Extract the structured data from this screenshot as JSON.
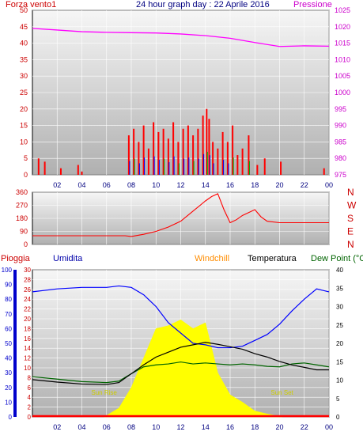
{
  "header": {
    "title": "24 hour graph day : 22 Aprile 2016",
    "left_label": "Forza vento1",
    "right_label": "Pressione"
  },
  "panel3_header": {
    "pioggia": "Pioggia",
    "umidita": "Umidita",
    "windchill": "Windchill",
    "temperatura": "Temperatura",
    "dewpoint": "Dew Point (°C"
  },
  "colors": {
    "wind": "#ff0000",
    "wind_series_2": "#0000ff",
    "wind_series_3": "#00aa00",
    "pressure": "#ff00ff",
    "winddir": "#ff0000",
    "humidity": "#0000ff",
    "temperature": "#000000",
    "dewpoint": "#006400",
    "windchill": "#ff8c00",
    "solar": "#ffff00",
    "rain": "#ff0000",
    "panel_bg_top": "#f6f6f6",
    "panel_bg_bottom": "#b0b0b0"
  },
  "chart_data": [
    {
      "type": "bar",
      "title": "24 hour graph day : 22 Aprile 2016",
      "x_ticks": [
        "02",
        "04",
        "06",
        "08",
        "10",
        "12",
        "14",
        "16",
        "18",
        "20",
        "22",
        "00"
      ],
      "left_axis": {
        "label": "Forza vento1",
        "ylim": [
          0,
          50
        ],
        "ticks": [
          0,
          5,
          10,
          15,
          20,
          25,
          30,
          35,
          40,
          45,
          50
        ]
      },
      "right_axis": {
        "label": "Pressione",
        "ylim": [
          975,
          1025
        ],
        "ticks": [
          975,
          980,
          985,
          990,
          995,
          1000,
          1005,
          1010,
          1015,
          1020,
          1025
        ]
      },
      "grid": true,
      "pressure_line": {
        "x_hours": [
          0,
          2,
          4,
          6,
          8,
          10,
          12,
          14,
          16,
          18,
          20,
          22,
          24
        ],
        "values": [
          1019.5,
          1019,
          1018.5,
          1018.3,
          1018.2,
          1018.1,
          1017.8,
          1017.3,
          1016.5,
          1015.2,
          1014.0,
          1014.2,
          1014.1
        ]
      },
      "wind_bursts": [
        {
          "x_hour": 0.5,
          "value": 5
        },
        {
          "x_hour": 1.0,
          "value": 4
        },
        {
          "x_hour": 2.3,
          "value": 2
        },
        {
          "x_hour": 3.7,
          "value": 3
        },
        {
          "x_hour": 4.0,
          "value": 1
        },
        {
          "x_hour": 7.8,
          "value": 12
        },
        {
          "x_hour": 8.2,
          "value": 14
        },
        {
          "x_hour": 8.6,
          "value": 10
        },
        {
          "x_hour": 9.0,
          "value": 15
        },
        {
          "x_hour": 9.4,
          "value": 8
        },
        {
          "x_hour": 9.8,
          "value": 16
        },
        {
          "x_hour": 10.2,
          "value": 13
        },
        {
          "x_hour": 10.6,
          "value": 14
        },
        {
          "x_hour": 11.0,
          "value": 11
        },
        {
          "x_hour": 11.4,
          "value": 16
        },
        {
          "x_hour": 11.8,
          "value": 10
        },
        {
          "x_hour": 12.2,
          "value": 14
        },
        {
          "x_hour": 12.6,
          "value": 15
        },
        {
          "x_hour": 13.0,
          "value": 12
        },
        {
          "x_hour": 13.4,
          "value": 14
        },
        {
          "x_hour": 13.8,
          "value": 18
        },
        {
          "x_hour": 14.1,
          "value": 20
        },
        {
          "x_hour": 14.3,
          "value": 17
        },
        {
          "x_hour": 14.6,
          "value": 10
        },
        {
          "x_hour": 15.0,
          "value": 8
        },
        {
          "x_hour": 15.4,
          "value": 13
        },
        {
          "x_hour": 15.8,
          "value": 10
        },
        {
          "x_hour": 16.2,
          "value": 15
        },
        {
          "x_hour": 16.6,
          "value": 6
        },
        {
          "x_hour": 17.0,
          "value": 8
        },
        {
          "x_hour": 17.5,
          "value": 12
        },
        {
          "x_hour": 18.2,
          "value": 3
        },
        {
          "x_hour": 18.8,
          "value": 5
        },
        {
          "x_hour": 20.1,
          "value": 4
        },
        {
          "x_hour": 23.6,
          "value": 2
        }
      ]
    },
    {
      "type": "line",
      "left_axis": {
        "ylim": [
          0,
          360
        ],
        "ticks": [
          0,
          90,
          180,
          270,
          360
        ]
      },
      "right_labels": [
        "N",
        "W",
        "S",
        "E",
        "N"
      ],
      "series": [
        {
          "x_hours": [
            0,
            2,
            4,
            6,
            7.5,
            8,
            9,
            10,
            11,
            12,
            13,
            14,
            14.5,
            15,
            15.5,
            16,
            16.5,
            17,
            18,
            18.5,
            19,
            20,
            21,
            22,
            23,
            24
          ],
          "values": [
            60,
            60,
            60,
            60,
            60,
            55,
            70,
            90,
            120,
            160,
            230,
            300,
            330,
            350,
            240,
            150,
            170,
            200,
            240,
            190,
            160,
            150,
            150,
            150,
            150,
            150
          ]
        }
      ]
    },
    {
      "type": "line",
      "x_ticks": [
        "02",
        "04",
        "06",
        "08",
        "10",
        "12",
        "14",
        "16",
        "18",
        "20",
        "22",
        "00"
      ],
      "left_axis_rain": {
        "ylim": [
          0,
          100
        ],
        "ticks": [
          0,
          10,
          20,
          30,
          40,
          50,
          60,
          70,
          80,
          90,
          100
        ]
      },
      "left_axis_temp": {
        "ylim": [
          0,
          30
        ],
        "ticks": [
          0,
          2,
          4,
          6,
          8,
          10,
          12,
          14,
          16,
          18,
          20,
          22,
          24,
          26,
          28,
          30
        ]
      },
      "right_axis": {
        "ylim": [
          0,
          40
        ],
        "ticks": [
          0,
          5,
          10,
          15,
          20,
          25,
          30,
          35,
          40
        ]
      },
      "sun_labels": {
        "rise": {
          "text": "Sun Rise",
          "x_hour": 5.8
        },
        "set": {
          "text": "Sun Set",
          "x_hour": 20.2
        }
      },
      "series": [
        {
          "name": "Umidita",
          "x_hours": [
            0,
            2,
            4,
            6,
            7,
            8,
            9,
            10,
            11,
            12,
            13,
            14,
            15,
            16,
            17,
            18,
            19,
            20,
            21,
            22,
            23,
            24
          ],
          "values": [
            85,
            87,
            88,
            88,
            89,
            88,
            83,
            75,
            64,
            57,
            50,
            49,
            47,
            47,
            48,
            52,
            56,
            63,
            72,
            80,
            87,
            85
          ]
        },
        {
          "name": "Temperatura",
          "x_hours": [
            0,
            2,
            4,
            6,
            7,
            8,
            9,
            10,
            11,
            12,
            13,
            14,
            15,
            16,
            17,
            18,
            19,
            20,
            21,
            22,
            23,
            24
          ],
          "values": [
            7.6,
            7.1,
            6.7,
            6.6,
            7.0,
            8.8,
            10.6,
            12.2,
            13.2,
            14.2,
            14.7,
            15.2,
            14.8,
            14.3,
            13.8,
            12.9,
            12.2,
            11.3,
            10.6,
            10.1,
            9.6,
            9.6
          ]
        },
        {
          "name": "Dew Point",
          "x_hours": [
            0,
            2,
            4,
            6,
            7,
            8,
            9,
            10,
            11,
            12,
            13,
            14,
            15,
            16,
            17,
            18,
            19,
            20,
            21,
            22,
            23,
            24
          ],
          "values": [
            8.2,
            7.7,
            7.2,
            7.0,
            7.3,
            8.8,
            10.2,
            10.6,
            10.8,
            11.2,
            10.8,
            11.0,
            10.8,
            10.6,
            10.8,
            10.6,
            10.3,
            10.2,
            10.8,
            11.0,
            10.6,
            10.2
          ]
        },
        {
          "name": "Solar",
          "x_hours": [
            5.8,
            7,
            8,
            9,
            10,
            11,
            12,
            13,
            14,
            15,
            16,
            17,
            18,
            19,
            20.2
          ],
          "values": [
            0,
            6,
            20,
            40,
            60,
            62,
            66,
            60,
            64,
            30,
            15,
            10,
            4,
            2,
            0
          ]
        },
        {
          "name": "Pioggia",
          "x_hours": [
            0,
            24
          ],
          "values": [
            0,
            0
          ]
        }
      ]
    }
  ]
}
